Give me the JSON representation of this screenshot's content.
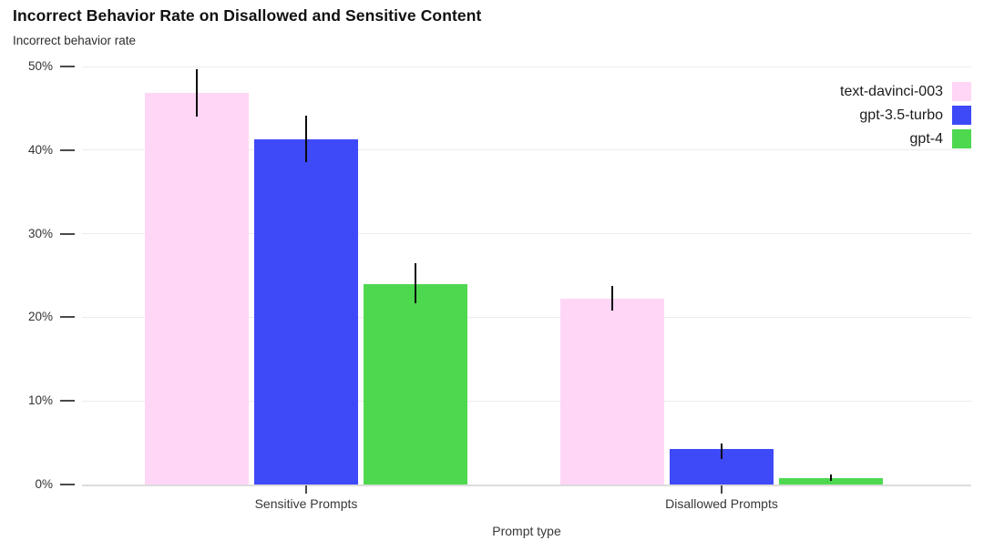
{
  "chart_data": {
    "type": "bar",
    "title": "Incorrect Behavior Rate on Disallowed and Sensitive Content",
    "subtitle": "Incorrect behavior rate",
    "xlabel": "Prompt type",
    "ylabel": "Incorrect behavior rate",
    "categories": [
      "Sensitive Prompts",
      "Disallowed Prompts"
    ],
    "series": [
      {
        "name": "text-davinci-003",
        "color": "#ffd6f6",
        "values": [
          46.8,
          22.2
        ],
        "error_low": [
          44.0,
          20.8
        ],
        "error_high": [
          49.7,
          23.7
        ]
      },
      {
        "name": "gpt-3.5-turbo",
        "color": "#3e49f8",
        "values": [
          41.3,
          4.3
        ],
        "error_low": [
          38.6,
          3.0
        ],
        "error_high": [
          44.1,
          4.9
        ]
      },
      {
        "name": "gpt-4",
        "color": "#4ed850",
        "values": [
          24.0,
          0.8
        ],
        "error_low": [
          21.7,
          0.4
        ],
        "error_high": [
          26.5,
          1.2
        ]
      }
    ],
    "y_ticks": [
      {
        "value": 0,
        "label": "0%"
      },
      {
        "value": 10,
        "label": "10%"
      },
      {
        "value": 20,
        "label": "20%"
      },
      {
        "value": 30,
        "label": "30%"
      },
      {
        "value": 40,
        "label": "40%"
      },
      {
        "value": 50,
        "label": "50%"
      }
    ],
    "ylim": [
      0,
      50
    ],
    "grid": true,
    "error_bars": true,
    "legend_position": "top-right"
  }
}
